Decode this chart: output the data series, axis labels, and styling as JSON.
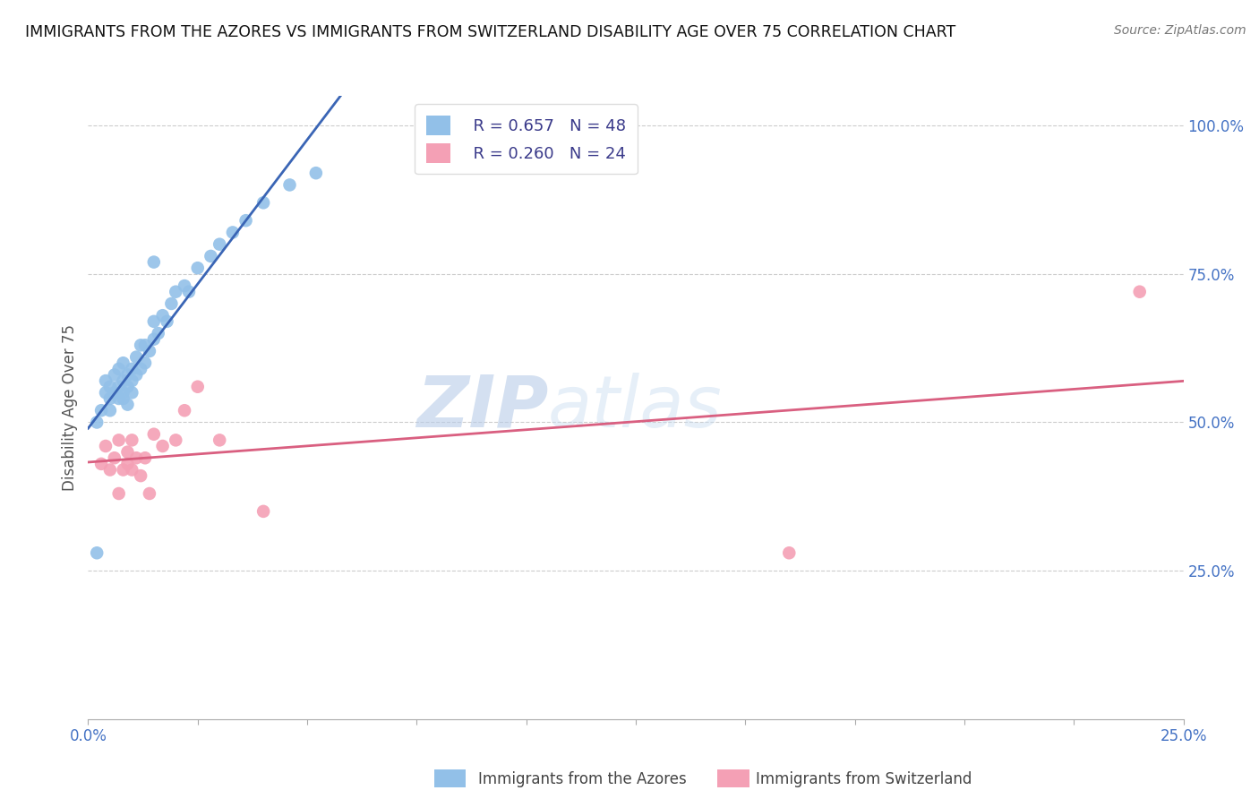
{
  "title": "IMMIGRANTS FROM THE AZORES VS IMMIGRANTS FROM SWITZERLAND DISABILITY AGE OVER 75 CORRELATION CHART",
  "source": "Source: ZipAtlas.com",
  "ylabel": "Disability Age Over 75",
  "xlim": [
    0.0,
    0.25
  ],
  "ylim": [
    0.0,
    1.05
  ],
  "azores_color": "#92C0E8",
  "switzerland_color": "#F4A0B5",
  "azores_line_color": "#3A65B5",
  "switzerland_line_color": "#D95F80",
  "background_color": "#FFFFFF",
  "watermark_zip": "ZIP",
  "watermark_atlas": "atlas",
  "legend_r1": "R = 0.657   N = 48",
  "legend_r2": "R = 0.260   N = 24",
  "azores_x": [
    0.002,
    0.003,
    0.004,
    0.004,
    0.005,
    0.005,
    0.005,
    0.006,
    0.006,
    0.007,
    0.007,
    0.007,
    0.008,
    0.008,
    0.008,
    0.008,
    0.009,
    0.009,
    0.009,
    0.01,
    0.01,
    0.01,
    0.011,
    0.011,
    0.012,
    0.012,
    0.013,
    0.013,
    0.014,
    0.015,
    0.015,
    0.016,
    0.017,
    0.018,
    0.019,
    0.02,
    0.022,
    0.023,
    0.025,
    0.028,
    0.03,
    0.033,
    0.036,
    0.04,
    0.046,
    0.052,
    0.002,
    0.015
  ],
  "azores_y": [
    0.28,
    0.52,
    0.55,
    0.57,
    0.52,
    0.54,
    0.56,
    0.55,
    0.58,
    0.54,
    0.56,
    0.59,
    0.54,
    0.57,
    0.6,
    0.55,
    0.56,
    0.58,
    0.53,
    0.57,
    0.59,
    0.55,
    0.58,
    0.61,
    0.59,
    0.63,
    0.6,
    0.63,
    0.62,
    0.64,
    0.67,
    0.65,
    0.68,
    0.67,
    0.7,
    0.72,
    0.73,
    0.72,
    0.76,
    0.78,
    0.8,
    0.82,
    0.84,
    0.87,
    0.9,
    0.92,
    0.5,
    0.77
  ],
  "switzerland_x": [
    0.003,
    0.004,
    0.005,
    0.006,
    0.007,
    0.007,
    0.008,
    0.009,
    0.009,
    0.01,
    0.01,
    0.011,
    0.012,
    0.013,
    0.014,
    0.015,
    0.017,
    0.02,
    0.022,
    0.025,
    0.03,
    0.04,
    0.16,
    0.24
  ],
  "switzerland_y": [
    0.43,
    0.46,
    0.42,
    0.44,
    0.47,
    0.38,
    0.42,
    0.43,
    0.45,
    0.42,
    0.47,
    0.44,
    0.41,
    0.44,
    0.38,
    0.48,
    0.46,
    0.47,
    0.52,
    0.56,
    0.47,
    0.35,
    0.28,
    0.72
  ]
}
